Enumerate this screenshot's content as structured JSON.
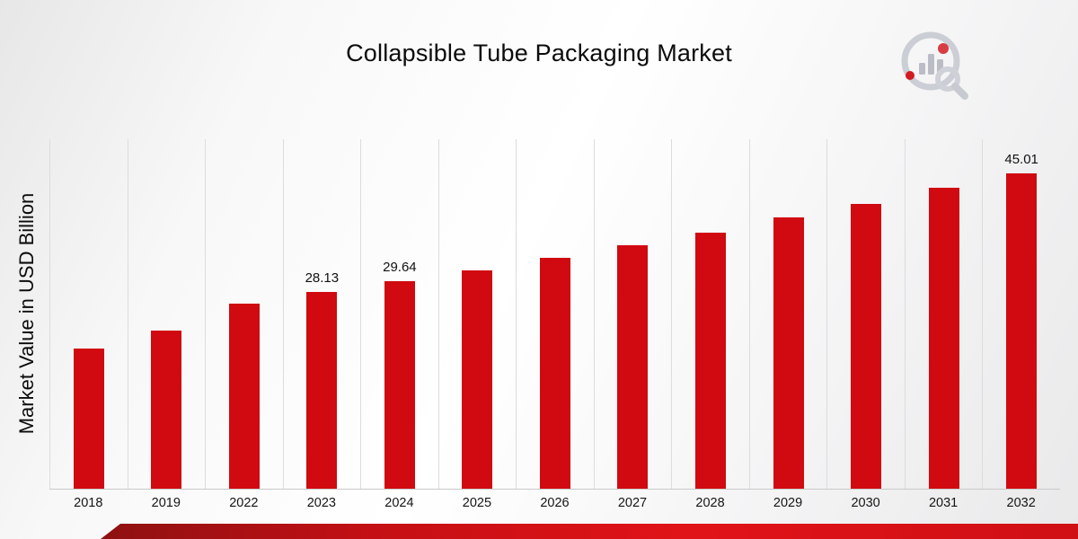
{
  "page": {
    "title": "Collapsible Tube Packaging Market"
  },
  "branding": {
    "logo": "market-research-future-logo"
  },
  "footer": {
    "ribbon_color_start": "#8e1112",
    "ribbon_color_end": "#cf1015"
  },
  "chart_data": {
    "type": "bar",
    "title": "Collapsible Tube Packaging Market",
    "xlabel": "",
    "ylabel": "Market Value in USD Billion",
    "categories": [
      "2018",
      "2019",
      "2022",
      "2023",
      "2024",
      "2025",
      "2026",
      "2027",
      "2028",
      "2029",
      "2030",
      "2031",
      "2032"
    ],
    "values": [
      20.0,
      22.6,
      26.4,
      28.13,
      29.64,
      31.1,
      32.9,
      34.7,
      36.5,
      38.7,
      40.6,
      42.9,
      45.01
    ],
    "data_labels": {
      "2023": "28.13",
      "2024": "29.64",
      "2032": "45.01"
    },
    "bar_color": "#d00a10",
    "ylim": [
      0,
      50
    ],
    "grid": "vertical category separators only",
    "legend": "none"
  }
}
